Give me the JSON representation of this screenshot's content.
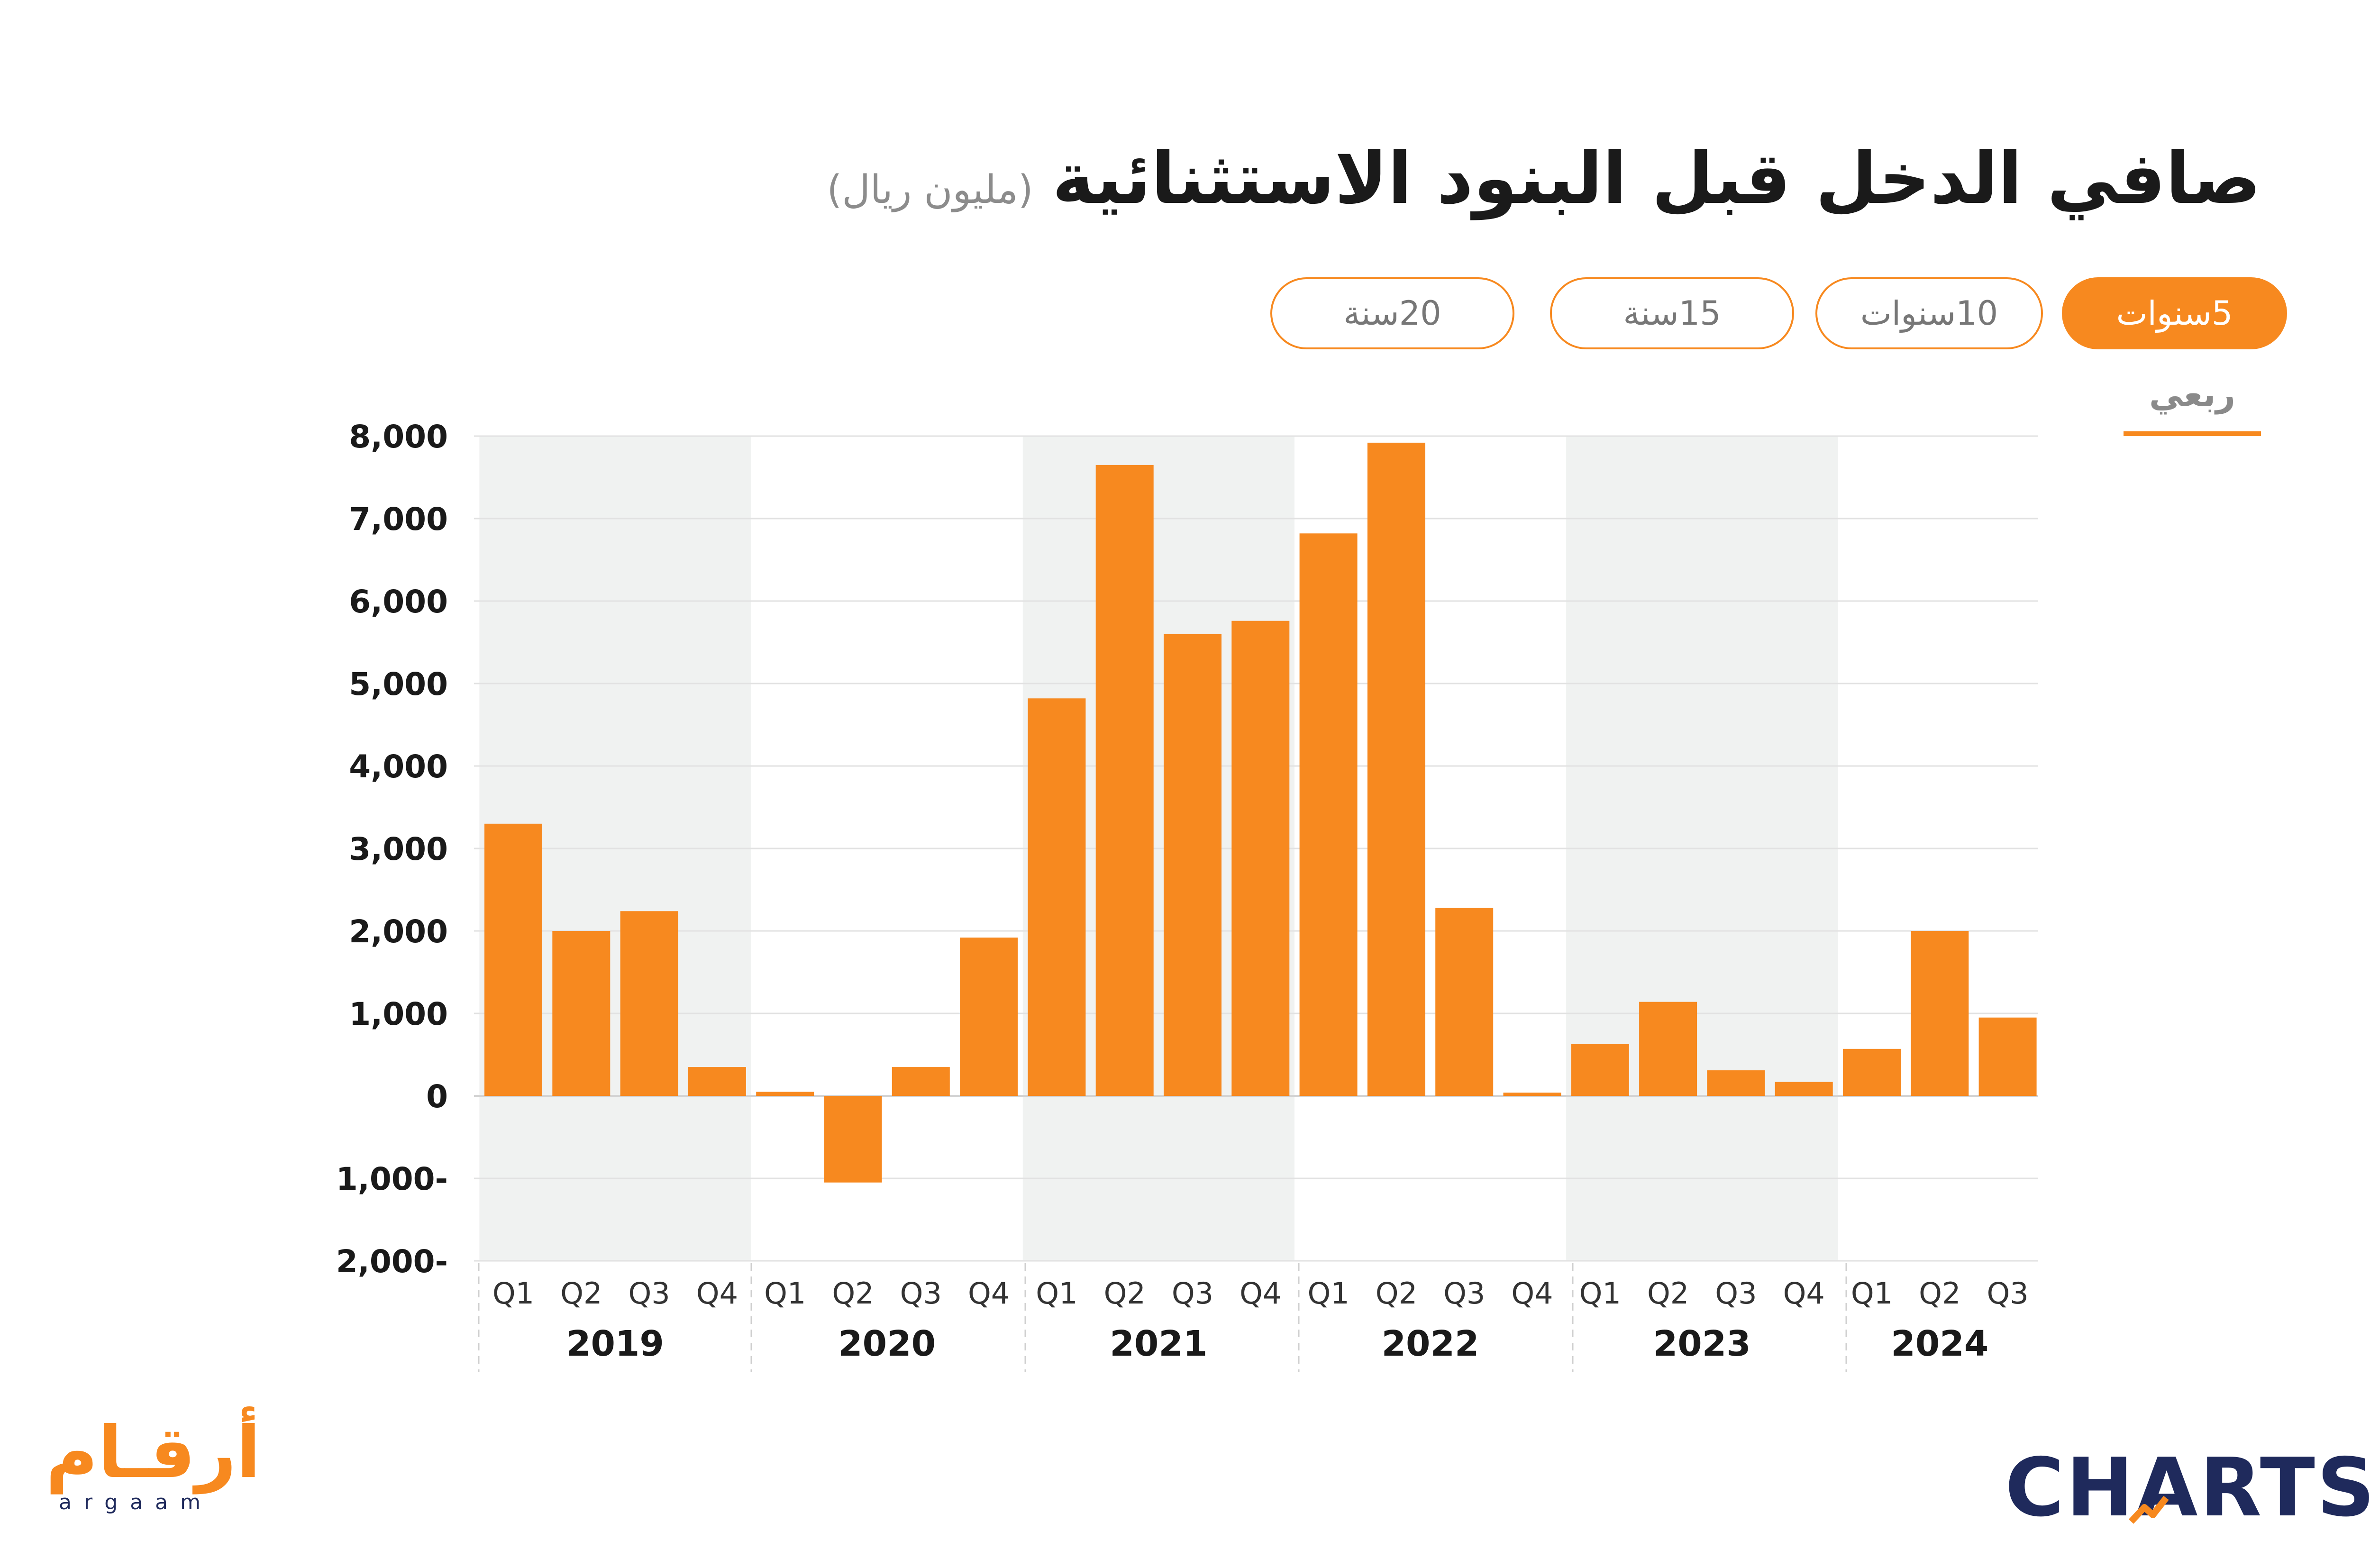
{
  "header": {
    "title": "صافي الدخل قبل البنود الاستثنائية",
    "unit": "(مليون ريال)"
  },
  "range_tabs": [
    {
      "label": "5سنوات",
      "active": true
    },
    {
      "label": "10سنوات",
      "active": false
    },
    {
      "label": "15سنة",
      "active": false
    },
    {
      "label": "20سنة",
      "active": false
    }
  ],
  "period_tab": {
    "label": "ربعي",
    "active": true
  },
  "colors": {
    "bar": "#f7891f",
    "band": "#f0f2f1",
    "accent": "#f7891f",
    "brand_dark": "#1f2a5c"
  },
  "chart_data": {
    "type": "bar",
    "ylim": [
      -2000,
      8000
    ],
    "yticks": [
      8000,
      7000,
      6000,
      5000,
      4000,
      3000,
      2000,
      1000,
      0,
      -1000,
      -2000
    ],
    "ytick_labels": [
      "8,000",
      "7,000",
      "6,000",
      "5,000",
      "4,000",
      "3,000",
      "2,000",
      "1,000",
      "0",
      "1,000-",
      "2,000-"
    ],
    "grid": true,
    "years": [
      "2019",
      "2020",
      "2021",
      "2022",
      "2023",
      "2024"
    ],
    "categories": [
      "Q1",
      "Q2",
      "Q3",
      "Q4",
      "Q1",
      "Q2",
      "Q3",
      "Q4",
      "Q1",
      "Q2",
      "Q3",
      "Q4",
      "Q1",
      "Q2",
      "Q3",
      "Q4",
      "Q1",
      "Q2",
      "Q3",
      "Q4",
      "Q1",
      "Q2",
      "Q3"
    ],
    "values": [
      3300,
      2000,
      2240,
      350,
      50,
      -1050,
      350,
      1920,
      4820,
      7650,
      5600,
      5760,
      6820,
      7920,
      2280,
      40,
      630,
      1140,
      310,
      170,
      570,
      2000,
      950
    ]
  },
  "logos": {
    "arqaam_ar": "أرقـام",
    "arqaam_en": "argaam",
    "charts": "CHARTS"
  }
}
